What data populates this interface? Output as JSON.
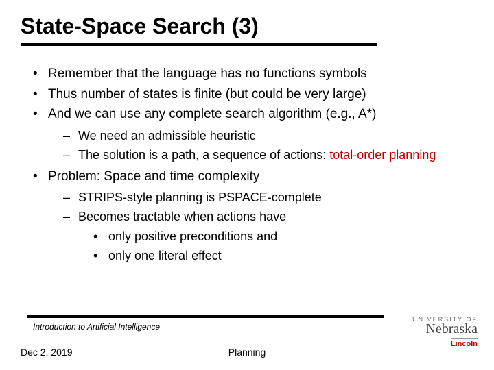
{
  "title": "State-Space Search (3)",
  "bullets": {
    "b1": "Remember that the language has no functions symbols",
    "b2": "Thus number of states is finite (but could be very large)",
    "b3": "And we can use any complete search algorithm (e.g., A*)",
    "b3_sub1": "We need an admissible heuristic",
    "b3_sub2_pre": "The solution is a path, a sequence of actions: ",
    "b3_sub2_hl": "total-order planning",
    "b4": "Problem: Space and time complexity",
    "b4_sub1": "STRIPS-style planning is PSPACE-complete",
    "b4_sub2": "Becomes tractable when actions have",
    "b4_sub2_a": "only positive preconditions and",
    "b4_sub2_b": "only one literal effect"
  },
  "footer": {
    "course": "Introduction to Artificial Intelligence",
    "date": "Dec 2, 2019",
    "topic": "Planning"
  },
  "logo": {
    "top": "UNIVERSITY OF",
    "main": "Nebraska",
    "sub": "Lincoln"
  },
  "colors": {
    "highlight": "#c00000",
    "text": "#000000",
    "logo_red": "#d00000",
    "background": "#ffffff"
  }
}
